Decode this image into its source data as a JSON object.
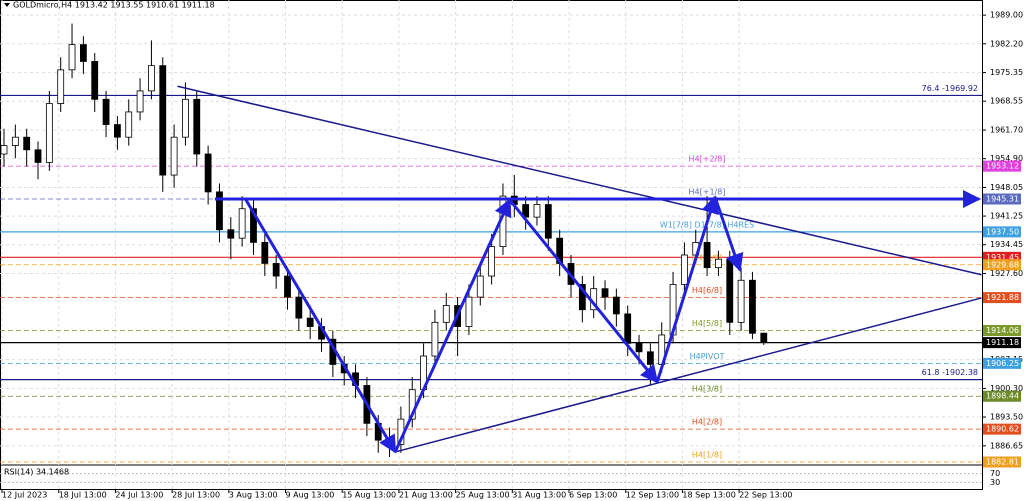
{
  "chart_data": {
    "type": "candlestick",
    "title": "GOLDmicro,H4  1913.42 1913.55 1910.61 1911.18",
    "categories": [
      "12 Jul 2023",
      null,
      null,
      null,
      null,
      "18 Jul 13:00",
      null,
      null,
      null,
      null,
      "24 Jul 13:00",
      null,
      null,
      null,
      null,
      "28 Jul 13:00",
      null,
      null,
      null,
      null,
      "3 Aug 13:00",
      null,
      null,
      null,
      null,
      "9 Aug 13:00",
      null,
      null,
      null,
      null,
      "15 Aug 13:00",
      null,
      null,
      null,
      null,
      "21 Aug 13:00",
      null,
      null,
      null,
      null,
      "25 Aug 13:00",
      null,
      null,
      null,
      null,
      "31 Aug 13:00",
      null,
      null,
      null,
      null,
      "6 Sep 13:00",
      null,
      null,
      null,
      null,
      "12 Sep 13:00",
      null,
      null,
      null,
      null,
      "18 Sep 13:00",
      null,
      null,
      null,
      null,
      "22 Sep 13:00",
      null,
      null
    ],
    "ohlc": [
      [
        1956,
        1962,
        1953,
        1958
      ],
      [
        1958,
        1963,
        1955,
        1960
      ],
      [
        1960,
        1962,
        1953,
        1957
      ],
      [
        1957,
        1959,
        1950,
        1954
      ],
      [
        1954,
        1971,
        1952,
        1968
      ],
      [
        1968,
        1979,
        1966,
        1976
      ],
      [
        1976,
        1987,
        1974,
        1982
      ],
      [
        1982,
        1984,
        1975,
        1978
      ],
      [
        1978,
        1980,
        1966,
        1969
      ],
      [
        1969,
        1971,
        1960,
        1963
      ],
      [
        1963,
        1965,
        1957,
        1960
      ],
      [
        1960,
        1969,
        1958,
        1966
      ],
      [
        1966,
        1974,
        1964,
        1971
      ],
      [
        1971,
        1983,
        1969,
        1977
      ],
      [
        1977,
        1979,
        1947,
        1951
      ],
      [
        1951,
        1963,
        1948,
        1960
      ],
      [
        1960,
        1973,
        1958,
        1969
      ],
      [
        1969,
        1971,
        1953,
        1956
      ],
      [
        1956,
        1958,
        1944,
        1947
      ],
      [
        1947,
        1949,
        1935,
        1938
      ],
      [
        1938,
        1941,
        1931,
        1936
      ],
      [
        1936,
        1946,
        1934,
        1943
      ],
      [
        1943,
        1945,
        1932,
        1935
      ],
      [
        1935,
        1937,
        1927,
        1930
      ],
      [
        1930,
        1932,
        1924,
        1927
      ],
      [
        1927,
        1929,
        1919,
        1922
      ],
      [
        1922,
        1924,
        1914,
        1917
      ],
      [
        1917,
        1920,
        1912,
        1915
      ],
      [
        1915,
        1917,
        1909,
        1912
      ],
      [
        1912,
        1914,
        1903,
        1906
      ],
      [
        1906,
        1908,
        1901,
        1904
      ],
      [
        1904,
        1906,
        1898,
        1901
      ],
      [
        1901,
        1903,
        1889,
        1892
      ],
      [
        1892,
        1894,
        1885,
        1888
      ],
      [
        1888,
        1891,
        1884,
        1887
      ],
      [
        1887,
        1896,
        1885,
        1893
      ],
      [
        1893,
        1903,
        1891,
        1900
      ],
      [
        1900,
        1911,
        1898,
        1908
      ],
      [
        1908,
        1919,
        1906,
        1916
      ],
      [
        1916,
        1923,
        1914,
        1920
      ],
      [
        1920,
        1922,
        1908,
        1915
      ],
      [
        1915,
        1925,
        1913,
        1922
      ],
      [
        1922,
        1930,
        1920,
        1927
      ],
      [
        1927,
        1937,
        1925,
        1934
      ],
      [
        1934,
        1949,
        1932,
        1946
      ],
      [
        1946,
        1951,
        1941,
        1944
      ],
      [
        1944,
        1946,
        1938,
        1941
      ],
      [
        1941,
        1946,
        1939,
        1944
      ],
      [
        1944,
        1946,
        1933,
        1936
      ],
      [
        1936,
        1938,
        1927,
        1930
      ],
      [
        1930,
        1932,
        1922,
        1925
      ],
      [
        1925,
        1927,
        1916,
        1919
      ],
      [
        1919,
        1927,
        1917,
        1924
      ],
      [
        1924,
        1926,
        1919,
        1922
      ],
      [
        1922,
        1924,
        1915,
        1918
      ],
      [
        1918,
        1920,
        1908,
        1911
      ],
      [
        1911,
        1913,
        1906,
        1909
      ],
      [
        1909,
        1911,
        1901,
        1906
      ],
      [
        1906,
        1916,
        1904,
        1913
      ],
      [
        1913,
        1928,
        1911,
        1925
      ],
      [
        1925,
        1935,
        1923,
        1932
      ],
      [
        1932,
        1938,
        1930,
        1935
      ],
      [
        1935,
        1946,
        1927,
        1929
      ],
      [
        1929,
        1933,
        1927,
        1931
      ],
      [
        1931,
        1933,
        1913,
        1916
      ],
      [
        1916,
        1929,
        1914,
        1926
      ],
      [
        1926,
        1928,
        1912,
        1913.4
      ],
      [
        1913.42,
        1913.55,
        1910.61,
        1911.18
      ]
    ],
    "ylim": [
      1882.1,
      1992.6
    ],
    "yticks": [
      {
        "value": 1989,
        "label": "1989.00"
      },
      {
        "value": 1982.2,
        "label": "1982.20"
      },
      {
        "value": 1975.35,
        "label": "1975.35"
      },
      {
        "value": 1968.55,
        "label": "1968.55"
      },
      {
        "value": 1961.7,
        "label": "1961.70"
      },
      {
        "value": 1954.9,
        "label": "1954.90"
      },
      {
        "value": 1948.05,
        "label": "1948.05"
      },
      {
        "value": 1941.25,
        "label": "1941.25"
      },
      {
        "value": 1934.45,
        "label": "1934.45"
      },
      {
        "value": 1927.6,
        "label": "1927.60"
      },
      {
        "value": 1907.15,
        "label": "1907.15"
      },
      {
        "value": 1900.3,
        "label": "1900.30"
      },
      {
        "value": 1893.5,
        "label": "1893.50"
      },
      {
        "value": 1886.65,
        "label": "1886.65"
      }
    ],
    "grid": true,
    "levels": [
      {
        "value": 1969.92,
        "text": "76.4 -1969.92",
        "color": "#1a1a8c",
        "style": "solid"
      },
      {
        "value": 1953.12,
        "text": "H4[+2/8]",
        "axis_label": "1953.12",
        "color": "#e040e0",
        "style": "dashed"
      },
      {
        "value": 1945.31,
        "text": "H4[+1/8]",
        "axis_label": "1945.31",
        "color": "#5c6bc0",
        "style": "dashed"
      },
      {
        "value": 1937.5,
        "text": "W1[7/8] D1[7/8] H4RES",
        "axis_label": "1937.50",
        "color": "#3fa0e0",
        "style": "solid"
      },
      {
        "value": 1931.45,
        "axis_label": "1931.45",
        "color": "#e02020",
        "style": "solid"
      },
      {
        "value": 1929.68,
        "text": "H4[7/8]",
        "axis_label": "1929.68",
        "color": "#f0a020",
        "style": "dashed"
      },
      {
        "value": 1921.88,
        "text": "H4[6/8]",
        "axis_label": "1921.88",
        "color": "#e05020",
        "style": "dashed"
      },
      {
        "value": 1914.06,
        "text": "H4[5/8]",
        "axis_label": "1914.06",
        "color": "#7a9a2a",
        "style": "dashed"
      },
      {
        "value": 1911.18,
        "axis_label": "1911.18",
        "color": "#000000",
        "style": "solid"
      },
      {
        "value": 1906.25,
        "text": "H4PIVOT",
        "axis_label": "1906.25",
        "color": "#3fa0e0",
        "style": "dashed"
      },
      {
        "value": 1902.38,
        "text": "61.8 -1902.38",
        "color": "#1a1a8c",
        "style": "solid"
      },
      {
        "value": 1898.44,
        "text": "H4[3/8]",
        "axis_label": "1898.44",
        "color": "#6b8a2a",
        "style": "dashed"
      },
      {
        "value": 1890.62,
        "text": "H4[2/8]",
        "axis_label": "1890.62",
        "color": "#e05020",
        "style": "dashed"
      },
      {
        "value": 1882.81,
        "text": "H4[1/8]",
        "axis_label": "1882.81",
        "color": "#f0a020",
        "style": "dashed"
      }
    ],
    "trendlines": [
      {
        "x": [
          15.3,
          86.2
        ],
        "y": [
          1972.1,
          1927.3
        ]
      },
      {
        "x": [
          34.5,
          86.2
        ],
        "y": [
          1885.2,
          1921.8
        ]
      }
    ],
    "arrow": {
      "x": [
        18.6,
        86.0
      ],
      "y": [
        1945.31,
        1945.31
      ]
    },
    "zigzag": {
      "x": [
        21.25,
        34.5,
        44.6,
        57.6,
        62.7,
        64.9
      ],
      "y": [
        1945.5,
        1885.2,
        1945.1,
        1901.8,
        1945.8,
        1928.4
      ]
    },
    "rsi": {
      "title": "RSI(14) 34.1468",
      "yticks": [
        70,
        30
      ],
      "ylim": [
        0,
        100
      ]
    }
  }
}
